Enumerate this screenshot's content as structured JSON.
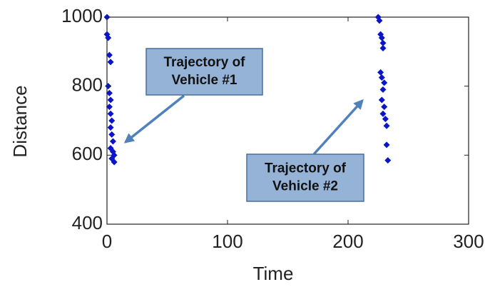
{
  "chart_data": {
    "type": "scatter",
    "xlabel": "Time",
    "ylabel": "Distance",
    "x": [
      0,
      0,
      1,
      2,
      3,
      1,
      2,
      3,
      2,
      3,
      4,
      3,
      4,
      5,
      3,
      5,
      6,
      4,
      6,
      225,
      226,
      227,
      228,
      229,
      229,
      227,
      228,
      230,
      229,
      228,
      230,
      229,
      231,
      232,
      232,
      233
    ],
    "values": [
      1000,
      950,
      940,
      890,
      870,
      800,
      780,
      760,
      740,
      720,
      700,
      680,
      660,
      640,
      620,
      610,
      600,
      590,
      580,
      1000,
      990,
      950,
      940,
      925,
      910,
      840,
      825,
      810,
      790,
      760,
      740,
      720,
      705,
      685,
      630,
      585
    ],
    "color": "#0a14c8",
    "xlim": [
      0,
      300
    ],
    "ylim": [
      400,
      1000
    ],
    "xticks": [
      0,
      100,
      200,
      300
    ],
    "yticks": [
      400,
      600,
      800,
      1000
    ],
    "grid": false,
    "annotations": [
      {
        "lines": [
          "Trajectory of",
          "Vehicle #1"
        ]
      },
      {
        "lines": [
          "Trajectory of",
          "Vehicle #2"
        ]
      }
    ]
  }
}
